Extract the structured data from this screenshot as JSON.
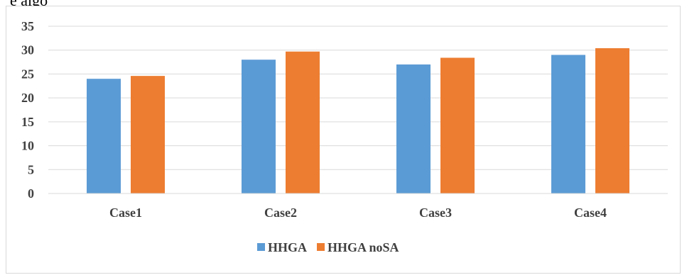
{
  "top_text": "e algo",
  "colors": {
    "HHGA": "#5b9bd5",
    "HHGA noSA": "#ed7d31",
    "grid": "#d9d9d9"
  },
  "chart_data": {
    "type": "bar",
    "categories": [
      "Case1",
      "Case2",
      "Case3",
      "Case4"
    ],
    "series": [
      {
        "name": "HHGA",
        "values": [
          24,
          28,
          27,
          29
        ]
      },
      {
        "name": "HHGA noSA",
        "values": [
          24.6,
          29.7,
          28.4,
          30.4
        ]
      }
    ],
    "ylim": [
      0,
      35
    ],
    "yticks": [
      0,
      5,
      10,
      15,
      20,
      25,
      30,
      35
    ],
    "grid": true,
    "legend_position": "bottom",
    "title": "",
    "xlabel": "",
    "ylabel": ""
  }
}
